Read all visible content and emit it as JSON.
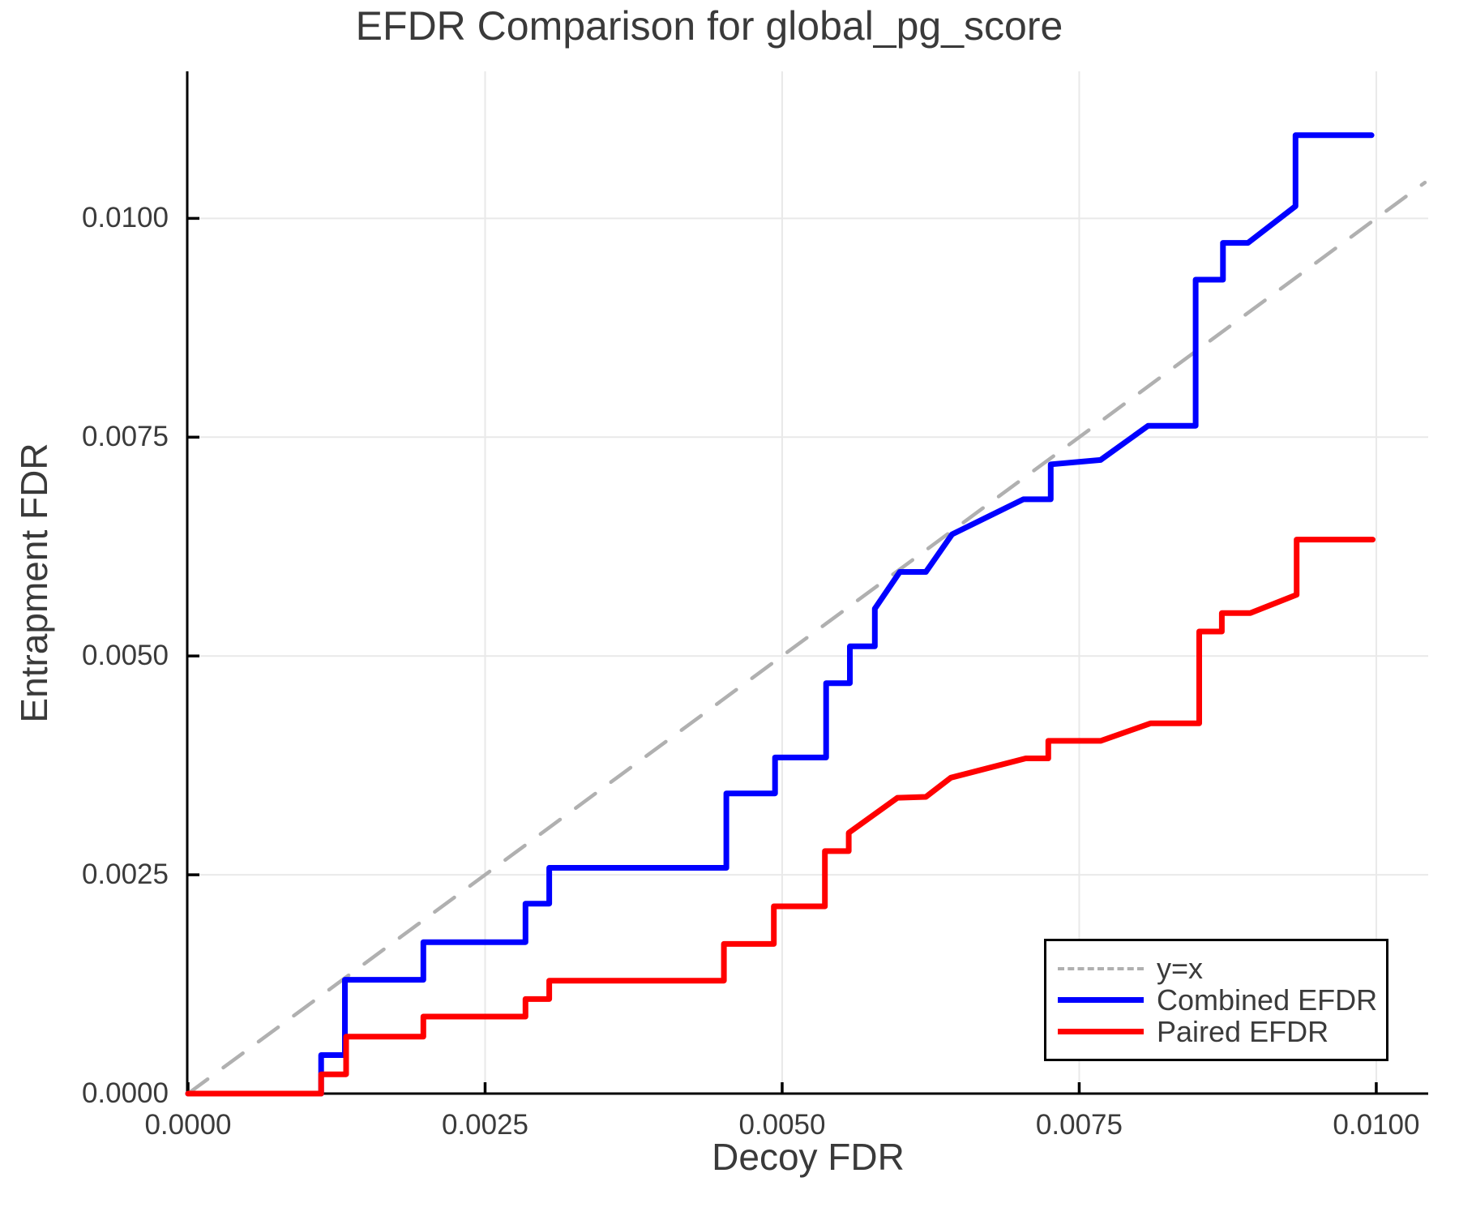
{
  "chart_data": {
    "type": "line",
    "title": "EFDR Comparison for global_pg_score",
    "xlabel": "Decoy FDR",
    "ylabel": "Entrapment FDR",
    "xlim": [
      0,
      0.010437
    ],
    "ylim": [
      0,
      0.01168
    ],
    "grid": true,
    "legend_position": "bottom-right",
    "x_ticks": {
      "values": [
        0.0,
        0.0025,
        0.005,
        0.0075,
        0.01
      ],
      "labels": [
        "0.0000",
        "0.0025",
        "0.0050",
        "0.0075",
        "0.0100"
      ]
    },
    "y_ticks": {
      "values": [
        0.0,
        0.0025,
        0.005,
        0.0075,
        0.01
      ],
      "labels": [
        "0.0000",
        "0.0025",
        "0.0050",
        "0.0075",
        "0.0100"
      ]
    },
    "style": {
      "grid_color": "#e9e9e9",
      "axis_color": "#000000",
      "text_color": "#3b3b3b",
      "background": "#ffffff"
    },
    "series": [
      {
        "name": "y=x",
        "color": "#b0b0b0",
        "dash": true,
        "width": 4.5,
        "points": [
          [
            0,
            0
          ],
          [
            0.010409,
            0.010409
          ]
        ]
      },
      {
        "name": "Combined EFDR",
        "color": "#0000ff",
        "dash": false,
        "width": 7,
        "points": [
          [
            0,
            0
          ],
          [
            0.00112,
            0
          ],
          [
            0.00112,
            0.00044
          ],
          [
            0.00132,
            0.00044
          ],
          [
            0.00132,
            0.0013
          ],
          [
            0.00198,
            0.0013
          ],
          [
            0.00198,
            0.00173
          ],
          [
            0.00284,
            0.00173
          ],
          [
            0.00284,
            0.00217
          ],
          [
            0.00304,
            0.00217
          ],
          [
            0.00304,
            0.00258
          ],
          [
            0.00453,
            0.00258
          ],
          [
            0.00453,
            0.00343
          ],
          [
            0.00494,
            0.00343
          ],
          [
            0.00494,
            0.00384
          ],
          [
            0.00537,
            0.00384
          ],
          [
            0.00537,
            0.00469
          ],
          [
            0.00557,
            0.00469
          ],
          [
            0.00557,
            0.00511
          ],
          [
            0.00578,
            0.00511
          ],
          [
            0.00578,
            0.00554
          ],
          [
            0.00599,
            0.00596
          ],
          [
            0.00621,
            0.00596
          ],
          [
            0.00643,
            0.00639
          ],
          [
            0.00703,
            0.00679
          ],
          [
            0.00726,
            0.00679
          ],
          [
            0.00726,
            0.00719
          ],
          [
            0.00768,
            0.00724
          ],
          [
            0.00808,
            0.00763
          ],
          [
            0.00848,
            0.00763
          ],
          [
            0.00848,
            0.0093
          ],
          [
            0.00871,
            0.0093
          ],
          [
            0.00871,
            0.00972
          ],
          [
            0.00892,
            0.00972
          ],
          [
            0.00932,
            0.01014
          ],
          [
            0.00932,
            0.01095
          ],
          [
            0.00996,
            0.01095
          ]
        ]
      },
      {
        "name": "Paired EFDR",
        "color": "#ff0000",
        "dash": false,
        "width": 7,
        "points": [
          [
            0,
            0
          ],
          [
            0.00112,
            0
          ],
          [
            0.00112,
            0.00022
          ],
          [
            0.00133,
            0.00022
          ],
          [
            0.00133,
            0.00065
          ],
          [
            0.00198,
            0.00065
          ],
          [
            0.00198,
            0.00088
          ],
          [
            0.00284,
            0.00088
          ],
          [
            0.00284,
            0.00108
          ],
          [
            0.00304,
            0.00108
          ],
          [
            0.00304,
            0.00129
          ],
          [
            0.00451,
            0.00129
          ],
          [
            0.00451,
            0.00171
          ],
          [
            0.00493,
            0.00171
          ],
          [
            0.00493,
            0.00214
          ],
          [
            0.00536,
            0.00214
          ],
          [
            0.00536,
            0.00277
          ],
          [
            0.00556,
            0.00277
          ],
          [
            0.00556,
            0.00298
          ],
          [
            0.00597,
            0.00338
          ],
          [
            0.00621,
            0.00339
          ],
          [
            0.00642,
            0.00361
          ],
          [
            0.00705,
            0.00383
          ],
          [
            0.00724,
            0.00383
          ],
          [
            0.00724,
            0.00403
          ],
          [
            0.00768,
            0.00403
          ],
          [
            0.0081,
            0.00423
          ],
          [
            0.00851,
            0.00423
          ],
          [
            0.00851,
            0.00528
          ],
          [
            0.0087,
            0.00528
          ],
          [
            0.0087,
            0.00549
          ],
          [
            0.00894,
            0.00549
          ],
          [
            0.00933,
            0.0057
          ],
          [
            0.00933,
            0.00633
          ],
          [
            0.00997,
            0.00633
          ]
        ]
      }
    ]
  }
}
